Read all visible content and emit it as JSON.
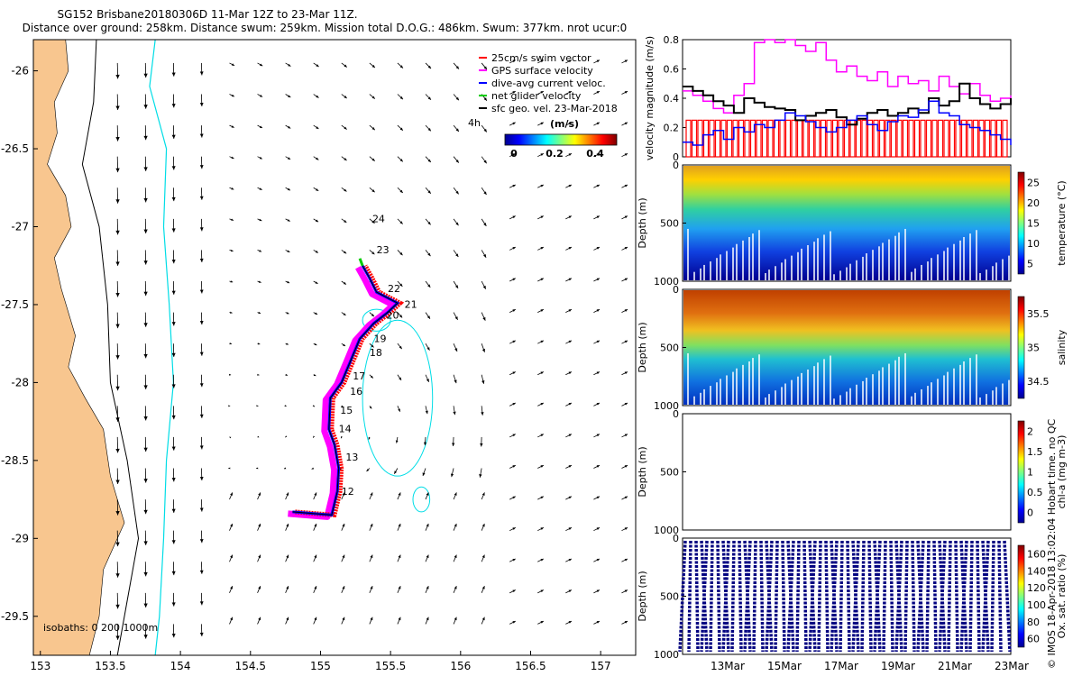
{
  "header": {
    "line1": "SG152 Brisbane20180306D 11-Mar 12Z to 23-Mar 11Z.",
    "line2": "Distance over ground: 258km. Distance swum: 259km. Mission total D.O.G.: 486km. Swum: 377km. nrot ucur:0"
  },
  "credit": "© IMOS 18-Apr-2018 13:02:04 Hobart time. no QC",
  "colors": {
    "land": "#f8c68f",
    "isobath200": "#00dde6",
    "swim": "#ff0000",
    "gps": "#ff00ff",
    "dac": "#0000ff",
    "net": "#00cc00"
  },
  "chart_data": [
    {
      "type": "map",
      "xlim": [
        152.95,
        157.25
      ],
      "ylim": [
        -29.75,
        -25.8
      ],
      "x_ticks": [
        "153",
        "153.5",
        "154",
        "154.5",
        "155",
        "155.5",
        "156",
        "156.5",
        "157"
      ],
      "y_ticks": [
        "-26",
        "-26.5",
        "-27",
        "-27.5",
        "-28",
        "-28.5",
        "-29",
        "-29.5"
      ],
      "legend": [
        "25cm/s swim vector",
        "GPS surface velocity",
        "dive-avg current veloc.",
        "net glider velocity",
        "sfc geo. vel. 23-Mar-2018"
      ],
      "legend_extra": "4h",
      "colorbar": {
        "label": "(m/s)",
        "ticks": [
          "0",
          "0.2",
          "0.4"
        ]
      },
      "isobaths_label": "isobaths: 0   200  1000m",
      "track": [
        [
          154.8,
          -28.83
        ],
        [
          155.08,
          -28.85
        ],
        [
          155.12,
          -28.7
        ],
        [
          155.13,
          -28.55
        ],
        [
          155.1,
          -28.4
        ],
        [
          155.06,
          -28.3
        ],
        [
          155.07,
          -28.1
        ],
        [
          155.15,
          -28.0
        ],
        [
          155.22,
          -27.85
        ],
        [
          155.28,
          -27.72
        ],
        [
          155.38,
          -27.62
        ],
        [
          155.48,
          -27.55
        ],
        [
          155.55,
          -27.49
        ],
        [
          155.4,
          -27.42
        ],
        [
          155.35,
          -27.33
        ],
        [
          155.3,
          -27.25
        ]
      ],
      "day_labels": [
        {
          "t": "12",
          "lon": 155.15,
          "lat": -28.72
        },
        {
          "t": "13",
          "lon": 155.18,
          "lat": -28.5
        },
        {
          "t": "14",
          "lon": 155.13,
          "lat": -28.32
        },
        {
          "t": "15",
          "lon": 155.14,
          "lat": -28.2
        },
        {
          "t": "16",
          "lon": 155.21,
          "lat": -28.08
        },
        {
          "t": "17",
          "lon": 155.23,
          "lat": -27.98
        },
        {
          "t": "18",
          "lon": 155.35,
          "lat": -27.83
        },
        {
          "t": "19",
          "lon": 155.38,
          "lat": -27.74
        },
        {
          "t": "20",
          "lon": 155.47,
          "lat": -27.59
        },
        {
          "t": "21",
          "lon": 155.6,
          "lat": -27.52
        },
        {
          "t": "22",
          "lon": 155.48,
          "lat": -27.42
        },
        {
          "t": "23",
          "lon": 155.4,
          "lat": -27.17
        },
        {
          "t": "24",
          "lon": 155.37,
          "lat": -26.97
        }
      ]
    },
    {
      "type": "line",
      "ylabel": "velocity magnitude (m/s)",
      "ylim": [
        0,
        0.8
      ],
      "y_ticks": [
        "0",
        "0.2",
        "0.4",
        "0.6",
        "0.8"
      ],
      "series": [
        {
          "color": "#ff00ff",
          "values": [
            0.45,
            0.42,
            0.38,
            0.33,
            0.3,
            0.42,
            0.5,
            0.78,
            0.8,
            0.78,
            0.8,
            0.76,
            0.72,
            0.78,
            0.66,
            0.58,
            0.62,
            0.55,
            0.52,
            0.58,
            0.48,
            0.55,
            0.5,
            0.52,
            0.45,
            0.55,
            0.48,
            0.43,
            0.5,
            0.42,
            0.38,
            0.4,
            0.42
          ]
        },
        {
          "color": "#000000",
          "values": [
            0.48,
            0.45,
            0.42,
            0.38,
            0.35,
            0.3,
            0.4,
            0.37,
            0.34,
            0.33,
            0.32,
            0.25,
            0.28,
            0.3,
            0.32,
            0.27,
            0.22,
            0.26,
            0.3,
            0.32,
            0.28,
            0.3,
            0.33,
            0.3,
            0.4,
            0.35,
            0.38,
            0.5,
            0.4,
            0.36,
            0.33,
            0.36,
            0.4
          ]
        },
        {
          "color": "#0000ff",
          "values": [
            0.1,
            0.08,
            0.15,
            0.18,
            0.12,
            0.2,
            0.17,
            0.22,
            0.2,
            0.25,
            0.3,
            0.28,
            0.24,
            0.2,
            0.17,
            0.2,
            0.25,
            0.28,
            0.22,
            0.18,
            0.24,
            0.28,
            0.27,
            0.32,
            0.38,
            0.3,
            0.28,
            0.22,
            0.2,
            0.18,
            0.15,
            0.12,
            0.08
          ]
        },
        {
          "color": "#ff0000",
          "values": [
            0.25,
            0.25,
            0.25,
            0.25,
            0.25,
            0.25,
            0.25,
            0.25,
            0.25,
            0.25,
            0.25,
            0.25,
            0.25,
            0.25,
            0.25,
            0.25,
            0.25,
            0.25,
            0.25,
            0.25,
            0.25,
            0.25,
            0.25,
            0.25,
            0.25,
            0.25,
            0.25,
            0.25,
            0.25,
            0.25,
            0.25,
            0.25,
            0.25
          ]
        }
      ]
    },
    {
      "type": "heatmap",
      "ylabel": "Depth (m)",
      "clabel": "temperature (°C)",
      "y_ticks": [
        "0",
        "500",
        "1000"
      ],
      "c_ticks": [
        "25",
        "20",
        "15",
        "10",
        "5"
      ],
      "colormap": "jet"
    },
    {
      "type": "heatmap",
      "ylabel": "Depth (m)",
      "clabel": "salinity",
      "y_ticks": [
        "0",
        "500",
        "1000"
      ],
      "c_ticks": [
        "35.5",
        "35",
        "34.5"
      ],
      "colormap": "jet"
    },
    {
      "type": "heatmap",
      "ylabel": "Depth (m)",
      "clabel": "chl-a (mg m-3)",
      "y_ticks": [
        "0",
        "500",
        "1000"
      ],
      "c_ticks": [
        "2",
        "1.5",
        "1",
        "0.5",
        "0"
      ],
      "colormap": "jet"
    },
    {
      "type": "heatmap",
      "ylabel": "Depth (m)",
      "clabel": "Ox. sat. ratio (%)",
      "y_ticks": [
        "0",
        "500",
        "1000"
      ],
      "c_ticks": [
        "160",
        "140",
        "120",
        "100",
        "80",
        "60"
      ],
      "colormap": "jet",
      "x_ticks": [
        "13Mar",
        "15Mar",
        "17Mar",
        "19Mar",
        "21Mar",
        "23Mar"
      ]
    }
  ]
}
